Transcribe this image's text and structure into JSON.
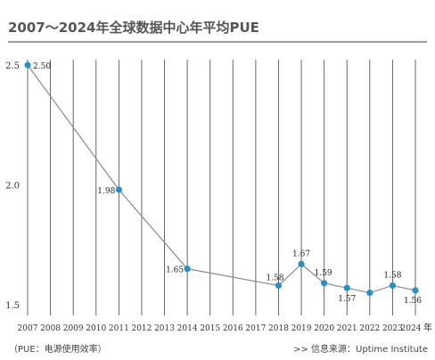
{
  "title": "2007～2024年全球数据中心年平均PUE",
  "footnote": "（PUE：电源使用效率）",
  "source": ">>  信息来源：Uptime Institute",
  "colors": {
    "line": "#8c8c8c",
    "point": "#2a8fc6",
    "grid": "#555555",
    "title_rule": "#9a9a9a"
  },
  "chart_data": {
    "type": "line",
    "title": "2007～2024年全球数据中心年平均PUE",
    "categories": [
      "2007",
      "2008",
      "2009",
      "2010",
      "2011",
      "2012",
      "2013",
      "2014",
      "2015",
      "2016",
      "2017",
      "2018",
      "2019",
      "2020",
      "2021",
      "2022",
      "2023",
      "2024"
    ],
    "category_suffix": "年",
    "series": [
      {
        "points": [
          {
            "x": "2007",
            "y": 2.5,
            "label": "2.50"
          },
          {
            "x": "2011",
            "y": 1.98,
            "label": "1.98"
          },
          {
            "x": "2014",
            "y": 1.65,
            "label": "1.65"
          },
          {
            "x": "2018",
            "y": 1.58,
            "label": "1.58"
          },
          {
            "x": "2019",
            "y": 1.67,
            "label": "1.67"
          },
          {
            "x": "2020",
            "y": 1.59,
            "label": "1.59"
          },
          {
            "x": "2021",
            "y": 1.57,
            "label": "1.57"
          },
          {
            "x": "2022",
            "y": 1.55,
            "label": ""
          },
          {
            "x": "2023",
            "y": 1.58,
            "label": "1.58"
          },
          {
            "x": "2024",
            "y": 1.56,
            "label": "1.56"
          }
        ]
      }
    ],
    "yticks": [
      "2.5",
      "2.0",
      "1.5"
    ],
    "ylim": [
      1.5,
      2.5
    ],
    "grid": "vertical"
  }
}
